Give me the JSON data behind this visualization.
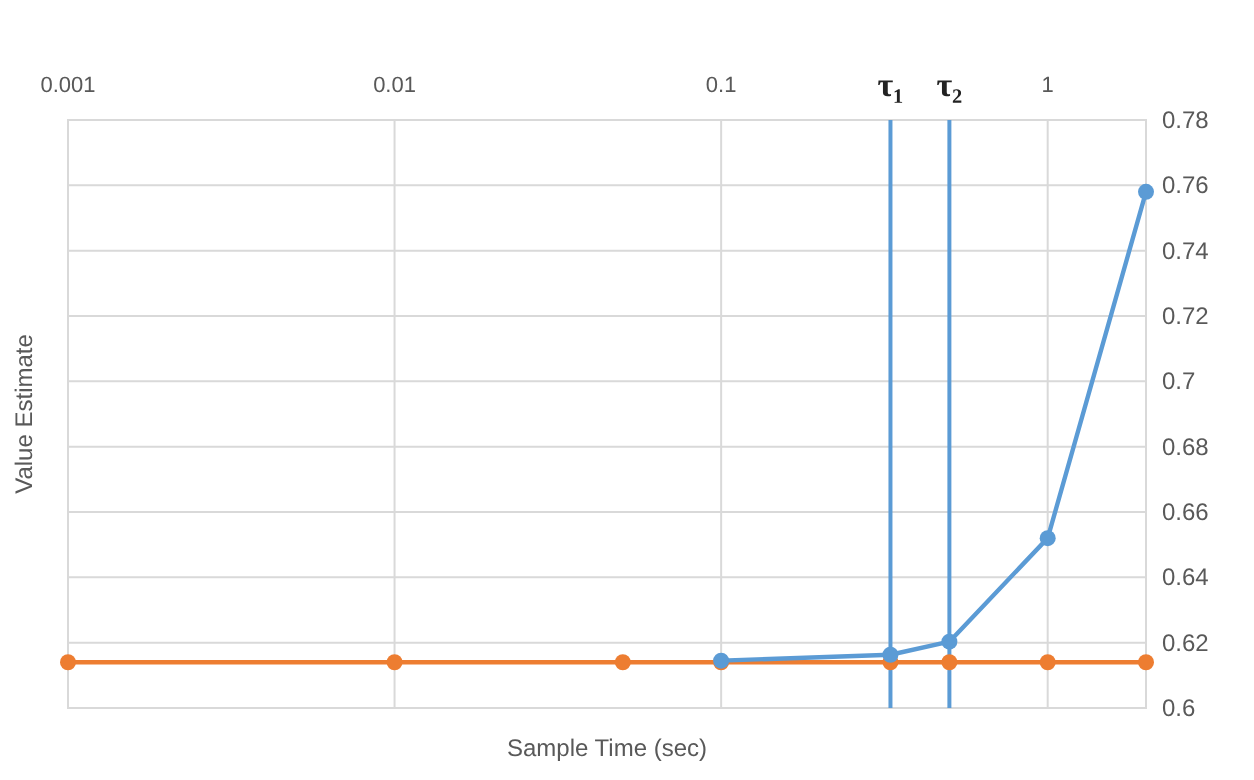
{
  "chart_data": {
    "type": "line",
    "xlabel": "Sample Time (sec)",
    "ylabel": "Value Estimate",
    "log": "x",
    "xlim": [
      0.001,
      2
    ],
    "xticks": [
      0.001,
      0.01,
      0.1,
      1
    ],
    "ylim": [
      0.6,
      0.78
    ],
    "yticks": [
      0.6,
      0.62,
      0.64,
      0.66,
      0.68,
      0.7,
      0.72,
      0.74,
      0.76,
      0.78
    ],
    "grid": true,
    "marker": "circle",
    "line_style": "solid",
    "series": [
      {
        "color": "#ed7d31",
        "x": [
          0.001,
          0.01,
          0.05,
          0.1,
          0.33,
          0.5,
          1,
          2
        ],
        "values": [
          0.614,
          0.614,
          0.614,
          0.614,
          0.614,
          0.614,
          0.614,
          0.614
        ]
      },
      {
        "color": "#5b9bd5",
        "x": [
          0.1,
          0.33,
          0.5,
          1,
          2
        ],
        "values": [
          0.6145,
          0.6163,
          0.6203,
          0.652,
          0.758
        ]
      }
    ],
    "ref_lines": [
      {
        "axis": "x",
        "value": 0.33,
        "label": "τ₁",
        "color": "#5b9bd5"
      },
      {
        "axis": "x",
        "value": 0.5,
        "label": "τ₂",
        "color": "#5b9bd5"
      }
    ]
  }
}
